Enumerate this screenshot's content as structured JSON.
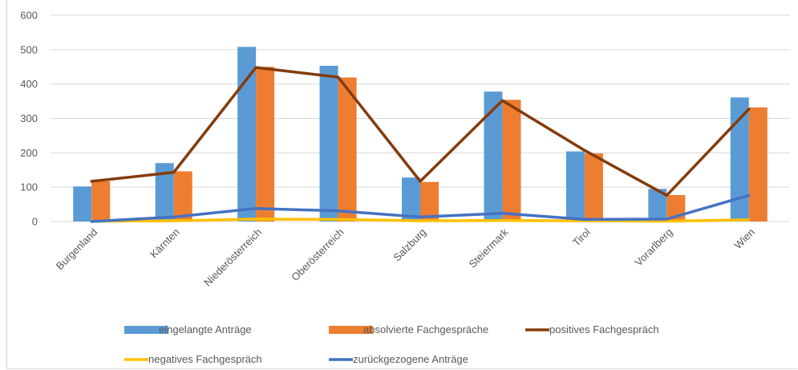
{
  "chart_data": {
    "type": "bar",
    "title": "",
    "xlabel": "",
    "ylabel": "",
    "ylim": [
      0,
      600
    ],
    "yticks": [
      0,
      100,
      200,
      300,
      400,
      500,
      600
    ],
    "grid": true,
    "legend_position": "bottom",
    "categories": [
      "Burgenland",
      "Kärnten",
      "Niederösterreich",
      "Oberösterreich",
      "Salzburg",
      "Steiermark",
      "Tirol",
      "Vorarlberg",
      "Wien"
    ],
    "series": [
      {
        "name": "eingelangte Anträge",
        "type": "bar",
        "color": "#5b9bd5",
        "values": [
          102,
          170,
          508,
          453,
          128,
          378,
          204,
          95,
          361
        ]
      },
      {
        "name": "absolvierte Fachgespräche",
        "type": "bar",
        "color": "#ed7d31",
        "values": [
          117,
          146,
          450,
          419,
          115,
          354,
          198,
          77,
          332
        ]
      },
      {
        "name": "positives Fachgespräch",
        "type": "line",
        "color": "#843c0c",
        "values": [
          117,
          143,
          448,
          420,
          117,
          352,
          207,
          76,
          327
        ]
      },
      {
        "name": "negatives Fachgespräch",
        "type": "line",
        "color": "#ffc000",
        "values": [
          1,
          2,
          7,
          6,
          2,
          3,
          2,
          1,
          5
        ]
      },
      {
        "name": "zurückgezogene Anträge",
        "type": "line",
        "color": "#4472c4",
        "values": [
          0,
          13,
          38,
          31,
          13,
          24,
          6,
          7,
          76
        ]
      }
    ]
  }
}
